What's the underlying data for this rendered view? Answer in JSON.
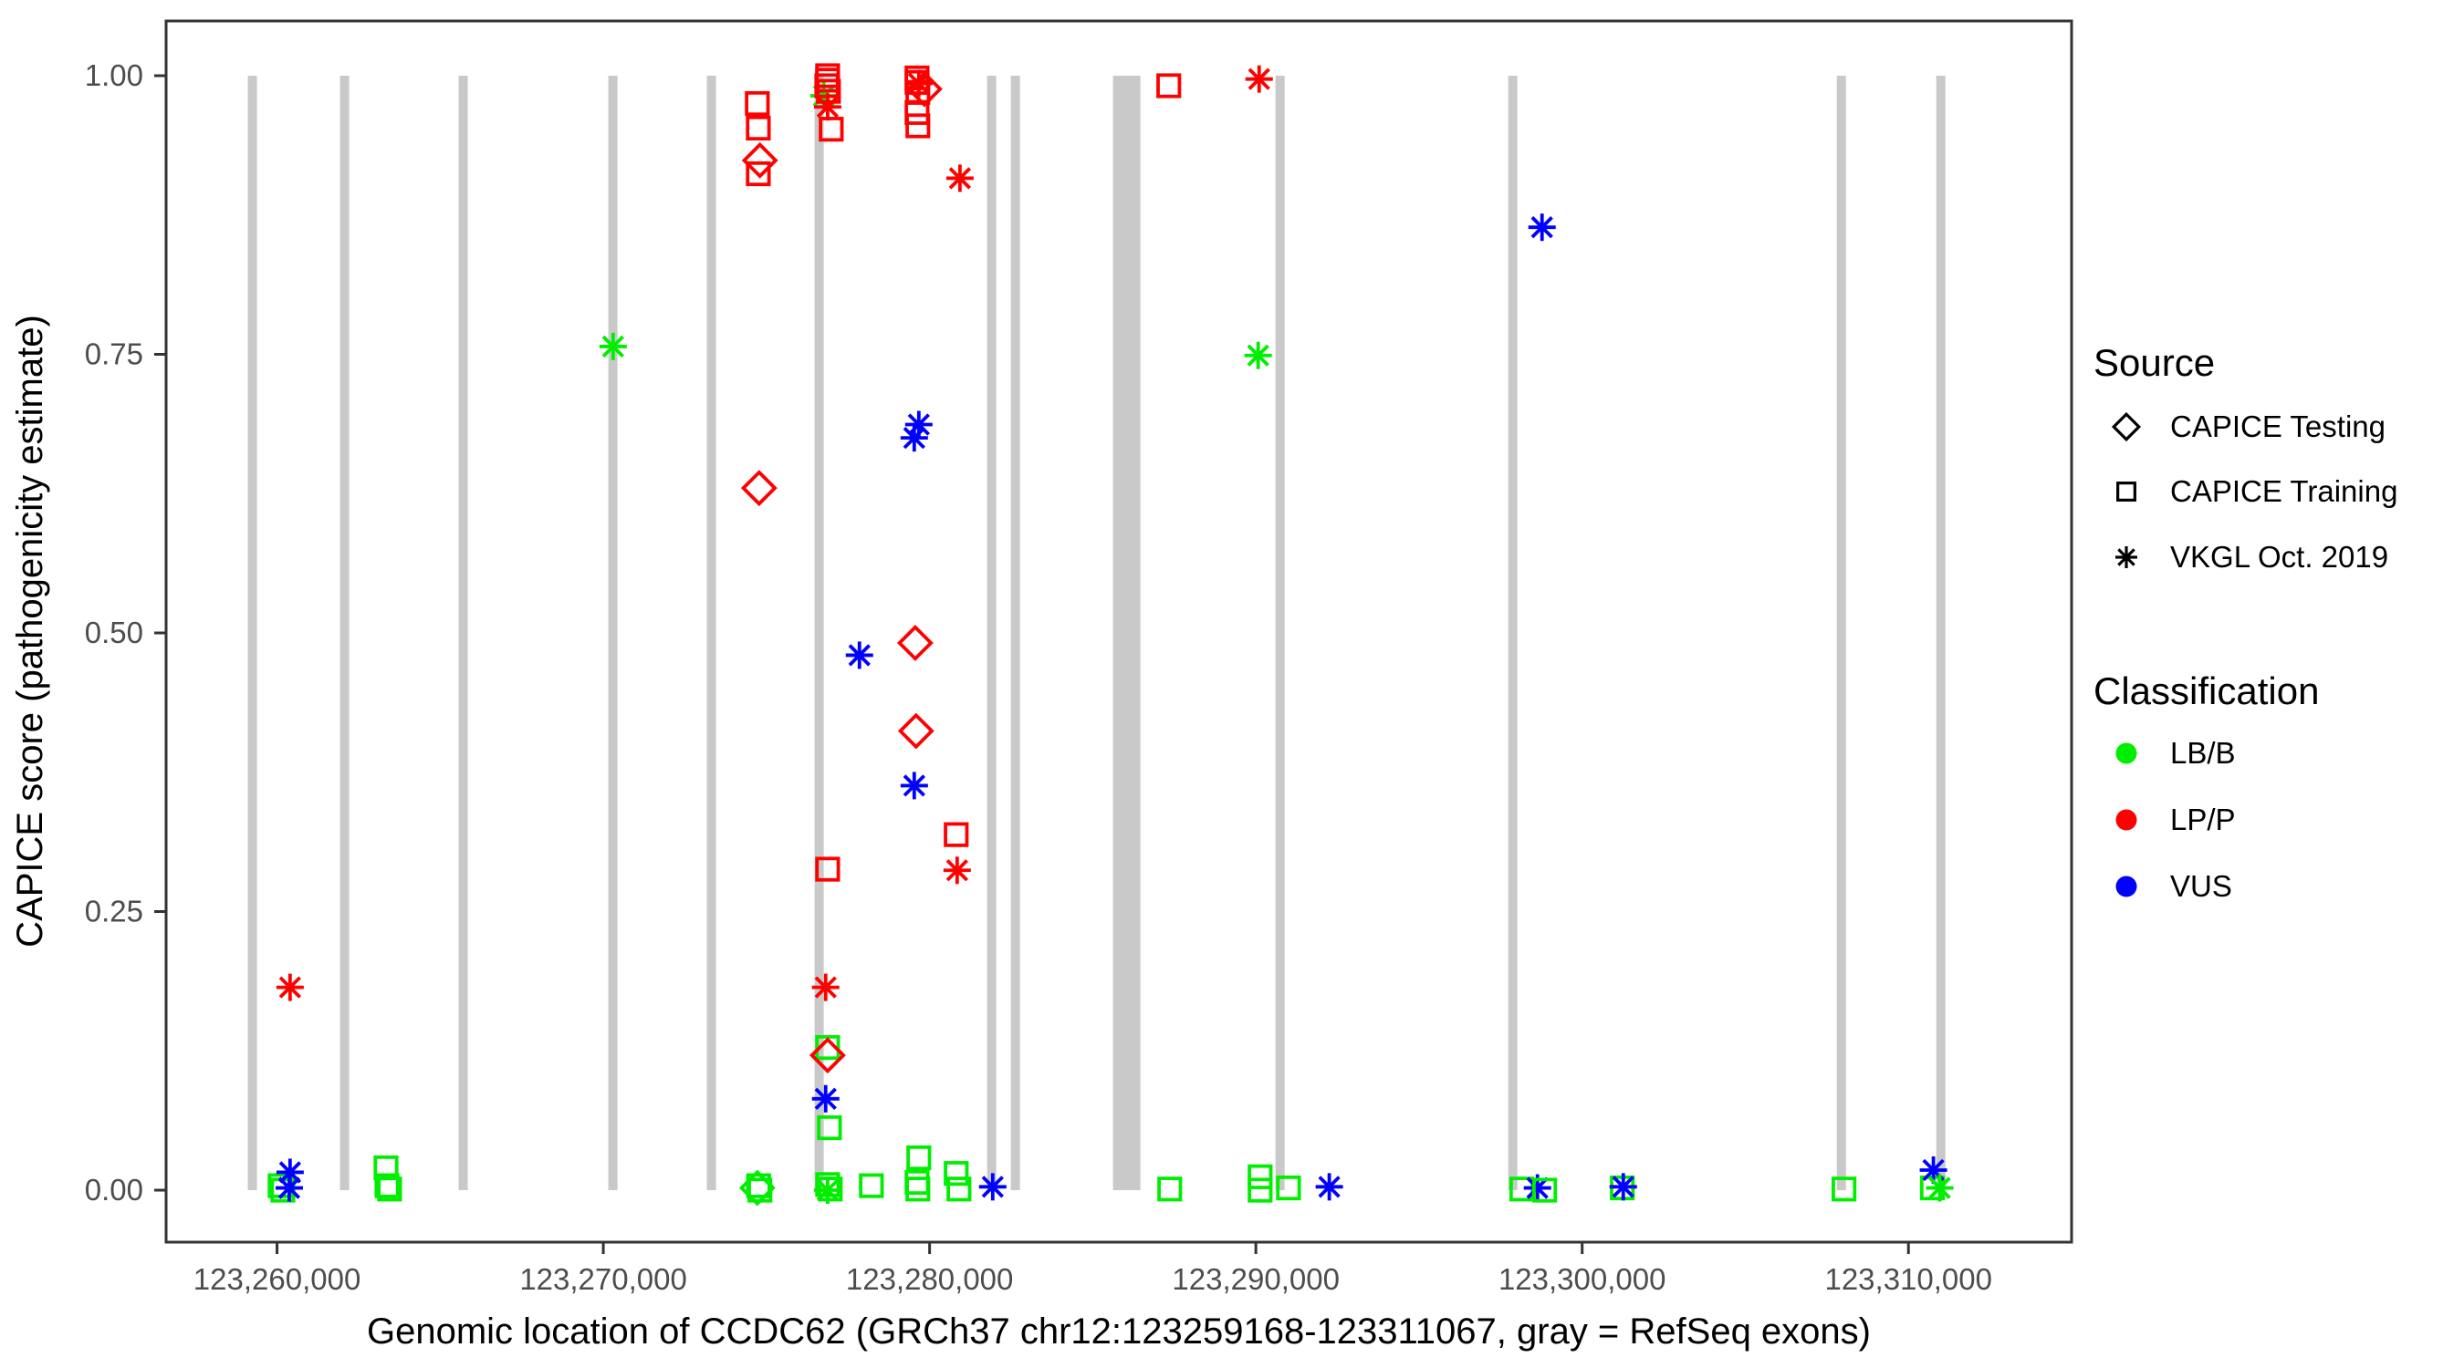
{
  "chart_data": {
    "type": "scatter",
    "title": "",
    "xlabel": "Genomic location of CCDC62 (GRCh37 chr12:123259168-123311067, gray = RefSeq exons)",
    "ylabel": "CAPICE score (pathogenicity estimate)",
    "xlim": [
      123256600,
      123315000
    ],
    "ylim": [
      -0.047,
      1.049
    ],
    "grid": false,
    "x_ticks": [
      {
        "value": 123260000,
        "label": "123,260,000"
      },
      {
        "value": 123270000,
        "label": "123,270,000"
      },
      {
        "value": 123280000,
        "label": "123,280,000"
      },
      {
        "value": 123290000,
        "label": "123,290,000"
      },
      {
        "value": 123300000,
        "label": "123,300,000"
      },
      {
        "value": 123310000,
        "label": "123,310,000"
      }
    ],
    "y_ticks": [
      {
        "value": 0.0,
        "label": "0.00"
      },
      {
        "value": 0.25,
        "label": "0.25"
      },
      {
        "value": 0.5,
        "label": "0.50"
      },
      {
        "value": 0.75,
        "label": "0.75"
      },
      {
        "value": 1.0,
        "label": "1.00"
      }
    ],
    "exon_color": "#C9C9C9",
    "exons_bp_center_width": [
      [
        123259245,
        280
      ],
      [
        123262070,
        280
      ],
      [
        123265706,
        280
      ],
      [
        123270294,
        280
      ],
      [
        123273315,
        280
      ],
      [
        123276615,
        280
      ],
      [
        123281902,
        280
      ],
      [
        123282629,
        280
      ],
      [
        123286042,
        840
      ],
      [
        123290741,
        280
      ],
      [
        123297874,
        280
      ],
      [
        123307944,
        280
      ],
      [
        123310993,
        280
      ]
    ],
    "classification_colors": {
      "LB/B": "#00EE00",
      "LP/P": "#FF0000",
      "VUS": "#0000FF"
    },
    "points": [
      [
        123260095,
        0.004,
        "square",
        "LB/B"
      ],
      [
        123260180,
        0.0,
        "square",
        "LB/B"
      ],
      [
        123260400,
        0.182,
        "asterisk",
        "LP/P"
      ],
      [
        123260400,
        0.016,
        "asterisk",
        "VUS"
      ],
      [
        123260375,
        0.002,
        "asterisk",
        "VUS"
      ],
      [
        123263340,
        0.02,
        "square",
        "LB/B"
      ],
      [
        123263370,
        0.004,
        "square",
        "LB/B"
      ],
      [
        123263450,
        0.001,
        "square",
        "LB/B"
      ],
      [
        123270300,
        0.757,
        "asterisk",
        "LB/B"
      ],
      [
        123274720,
        0.975,
        "square",
        "LP/P"
      ],
      [
        123274750,
        0.953,
        "square",
        "LP/P"
      ],
      [
        123274800,
        0.924,
        "diamond",
        "LP/P"
      ],
      [
        123274750,
        0.912,
        "square",
        "LP/P"
      ],
      [
        123274775,
        0.63,
        "diamond",
        "LP/P"
      ],
      [
        123274720,
        0.002,
        "diamond",
        "LB/B"
      ],
      [
        123274760,
        0.004,
        "square",
        "LB/B"
      ],
      [
        123274800,
        0.0,
        "square",
        "LB/B"
      ],
      [
        123276760,
        0.982,
        "asterisk",
        "LB/B"
      ],
      [
        123276875,
        1.0,
        "square",
        "LP/P"
      ],
      [
        123276875,
        0.996,
        "square",
        "LP/P"
      ],
      [
        123276850,
        0.991,
        "square",
        "LP/P"
      ],
      [
        123276900,
        0.986,
        "square",
        "LP/P"
      ],
      [
        123276875,
        0.972,
        "asterisk",
        "LP/P"
      ],
      [
        123276985,
        0.952,
        "square",
        "LP/P"
      ],
      [
        123276875,
        0.288,
        "square",
        "LP/P"
      ],
      [
        123276815,
        0.182,
        "asterisk",
        "LP/P"
      ],
      [
        123276875,
        0.128,
        "square",
        "LB/B"
      ],
      [
        123276875,
        0.121,
        "diamond",
        "LP/P"
      ],
      [
        123276815,
        0.082,
        "asterisk",
        "VUS"
      ],
      [
        123276930,
        0.056,
        "square",
        "LB/B"
      ],
      [
        123276875,
        0.005,
        "square",
        "LB/B"
      ],
      [
        123276875,
        0.0,
        "asterisk",
        "LB/B"
      ],
      [
        123276955,
        0.001,
        "square",
        "LB/B"
      ],
      [
        123277850,
        0.48,
        "asterisk",
        "VUS"
      ],
      [
        123278215,
        0.004,
        "square",
        "LB/B"
      ],
      [
        123279615,
        0.998,
        "square",
        "LP/P"
      ],
      [
        123279615,
        0.994,
        "square",
        "LP/P"
      ],
      [
        123279670,
        0.993,
        "asterisk",
        "LP/P"
      ],
      [
        123279840,
        0.988,
        "diamond",
        "LP/P"
      ],
      [
        123279640,
        0.985,
        "square",
        "LP/P"
      ],
      [
        123279615,
        0.967,
        "square",
        "LP/P"
      ],
      [
        123279640,
        0.955,
        "square",
        "LP/P"
      ],
      [
        123279670,
        0.687,
        "asterisk",
        "VUS"
      ],
      [
        123279530,
        0.675,
        "asterisk",
        "VUS"
      ],
      [
        123279560,
        0.491,
        "diamond",
        "LP/P"
      ],
      [
        123279585,
        0.412,
        "diamond",
        "LP/P"
      ],
      [
        123279530,
        0.363,
        "asterisk",
        "VUS"
      ],
      [
        123279670,
        0.029,
        "square",
        "LB/B"
      ],
      [
        123279615,
        0.007,
        "square",
        "LB/B"
      ],
      [
        123279640,
        0.001,
        "square",
        "LB/B"
      ],
      [
        123280815,
        0.319,
        "square",
        "LP/P"
      ],
      [
        123280845,
        0.287,
        "asterisk",
        "LP/P"
      ],
      [
        123280815,
        0.015,
        "square",
        "LB/B"
      ],
      [
        123280900,
        0.001,
        "square",
        "LB/B"
      ],
      [
        123280930,
        0.908,
        "asterisk",
        "LP/P"
      ],
      [
        123281935,
        0.003,
        "asterisk",
        "VUS"
      ],
      [
        123287330,
        0.991,
        "square",
        "LP/P"
      ],
      [
        123287360,
        0.001,
        "square",
        "LB/B"
      ],
      [
        123290100,
        0.997,
        "asterisk",
        "LP/P"
      ],
      [
        123290070,
        0.749,
        "asterisk",
        "LB/B"
      ],
      [
        123290130,
        0.012,
        "square",
        "LB/B"
      ],
      [
        123290130,
        0.0,
        "square",
        "LB/B"
      ],
      [
        123291000,
        0.002,
        "square",
        "LB/B"
      ],
      [
        123292250,
        0.003,
        "asterisk",
        "VUS"
      ],
      [
        123298150,
        0.001,
        "square",
        "LB/B"
      ],
      [
        123298630,
        0.002,
        "asterisk",
        "VUS"
      ],
      [
        123298850,
        0.0,
        "square",
        "LB/B"
      ],
      [
        123298770,
        0.864,
        "asterisk",
        "VUS"
      ],
      [
        123301230,
        0.002,
        "square",
        "LB/B"
      ],
      [
        123301260,
        0.003,
        "asterisk",
        "VUS"
      ],
      [
        123308025,
        0.001,
        "square",
        "LB/B"
      ],
      [
        123310735,
        0.002,
        "square",
        "LB/B"
      ],
      [
        123310765,
        0.018,
        "asterisk",
        "VUS"
      ],
      [
        123310960,
        0.002,
        "asterisk",
        "LB/B"
      ]
    ],
    "legend": {
      "source": {
        "title": "Source",
        "items": [
          {
            "label": "CAPICE Testing",
            "shape": "diamond"
          },
          {
            "label": "CAPICE Training",
            "shape": "square"
          },
          {
            "label": "VKGL Oct. 2019",
            "shape": "asterisk"
          }
        ]
      },
      "classification": {
        "title": "Classification",
        "items": [
          {
            "label": "LB/B",
            "color": "#00EE00"
          },
          {
            "label": "LP/P",
            "color": "#FF0000"
          },
          {
            "label": "VUS",
            "color": "#0000FF"
          }
        ]
      }
    },
    "colors": {
      "axis_text": "#4D4D4D",
      "panel_border": "#333333"
    }
  }
}
